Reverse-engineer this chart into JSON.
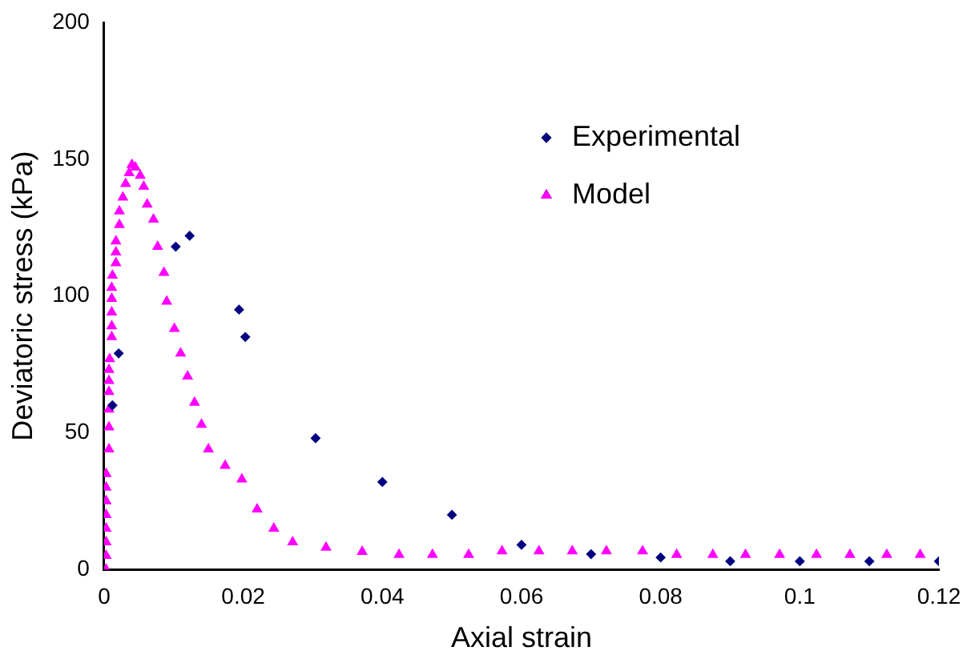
{
  "chart_data": {
    "type": "scatter",
    "xlabel": "Axial strain",
    "ylabel": "Deviatoric stress (kPa)",
    "xlim": [
      0,
      0.12
    ],
    "xticks": [
      0,
      0.02,
      0.04,
      0.06,
      0.08,
      0.1,
      0.12
    ],
    "ylim": [
      0,
      200
    ],
    "yticks": [
      0,
      50,
      100,
      150,
      200
    ],
    "grid": false,
    "legend": "top right",
    "series": [
      {
        "name": "Experimental",
        "color": "#000080",
        "marker": "diamond",
        "x": [
          0.0012,
          0.0021,
          0.0103,
          0.0123,
          0.0194,
          0.0203,
          0.0304,
          0.04,
          0.05,
          0.06,
          0.07,
          0.08,
          0.09,
          0.1,
          0.11,
          0.12
        ],
        "values": [
          60,
          79,
          118,
          122,
          95,
          85,
          48,
          32,
          20,
          9,
          5.6,
          4.4,
          3,
          3,
          3,
          3
        ]
      },
      {
        "name": "Model",
        "color": "#ff00ff",
        "marker": "triangle",
        "x": [
          0.0003,
          0.0003,
          0.0003,
          0.0003,
          0.0003,
          0.0003,
          0.0003,
          0.0003,
          0.0007,
          0.0007,
          0.0007,
          0.0007,
          0.0007,
          0.0007,
          0.0008,
          0.0011,
          0.0011,
          0.0011,
          0.0011,
          0.0011,
          0.0012,
          0.0017,
          0.0017,
          0.0017,
          0.0022,
          0.0022,
          0.0027,
          0.0031,
          0.0036,
          0.004,
          0.0045,
          0.0052,
          0.0057,
          0.0062,
          0.0071,
          0.0077,
          0.0086,
          0.009,
          0.0101,
          0.011,
          0.012,
          0.013,
          0.014,
          0.015,
          0.0174,
          0.0198,
          0.022,
          0.0244,
          0.0271,
          0.0319,
          0.0371,
          0.0424,
          0.0472,
          0.0524,
          0.0572,
          0.0625,
          0.0673,
          0.0722,
          0.0774,
          0.0823,
          0.0875,
          0.0922,
          0.0971,
          0.1024,
          0.1072,
          0.1125,
          0.1173
        ],
        "values": [
          0,
          5,
          10,
          15,
          20,
          25,
          30,
          35,
          44,
          52,
          58.5,
          65,
          69,
          73,
          77,
          85,
          89,
          94,
          99,
          103,
          107.5,
          112,
          116,
          120,
          126,
          131,
          136,
          141,
          145,
          148,
          147,
          144,
          140,
          133.5,
          128,
          118,
          108.5,
          98,
          88,
          79,
          70.6,
          61,
          53,
          44,
          38,
          33,
          22,
          15,
          10,
          8,
          6.5,
          5.4,
          5.4,
          5.4,
          6.7,
          6.7,
          6.7,
          6.7,
          6.7,
          5.4,
          5.4,
          5.4,
          5.4,
          5.4,
          5.4,
          5.4,
          5.4
        ]
      }
    ]
  }
}
